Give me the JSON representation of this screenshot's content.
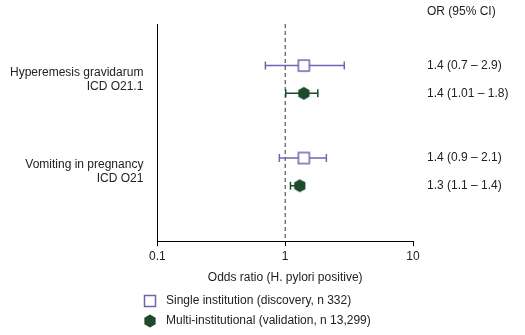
{
  "chart_data": {
    "type": "forest",
    "categories": [
      [
        "Hyperemesis gravidarum",
        "ICD O21.1"
      ],
      [
        "Vomiting in pregnancy",
        "ICD O21"
      ]
    ],
    "column_title": "OR (95% CI)",
    "x_label": "Odds ratio (H. pylori positive)",
    "xlim": [
      0.1,
      10
    ],
    "xticks": [
      0.1,
      1,
      10
    ],
    "log": "x",
    "reference_value": 1,
    "grid": false,
    "legend": "bottom",
    "orientation": "horizontal",
    "data_labels": true,
    "series": [
      {
        "name": "Single institution (discovery, n 332)",
        "color": "#6f64b0",
        "marker": "square_open",
        "values": [
          1.4,
          1.4
        ],
        "ci_low": [
          0.7,
          0.9
        ],
        "ci_high": [
          2.9,
          2.1
        ],
        "value_labels": [
          "1.4 (0.7 – 2.9)",
          "1.4 (0.9 – 2.1)"
        ]
      },
      {
        "name": "Multi-institutional (validation, n 13,299)",
        "color": "#1d4a2a",
        "marker": "hexagon",
        "values": [
          1.4,
          1.3
        ],
        "ci_low": [
          1.01,
          1.1
        ],
        "ci_high": [
          1.8,
          1.4
        ],
        "value_labels": [
          "1.4 (1.01 – 1.8)",
          "1.3 (1.1 – 1.4)"
        ]
      }
    ]
  }
}
